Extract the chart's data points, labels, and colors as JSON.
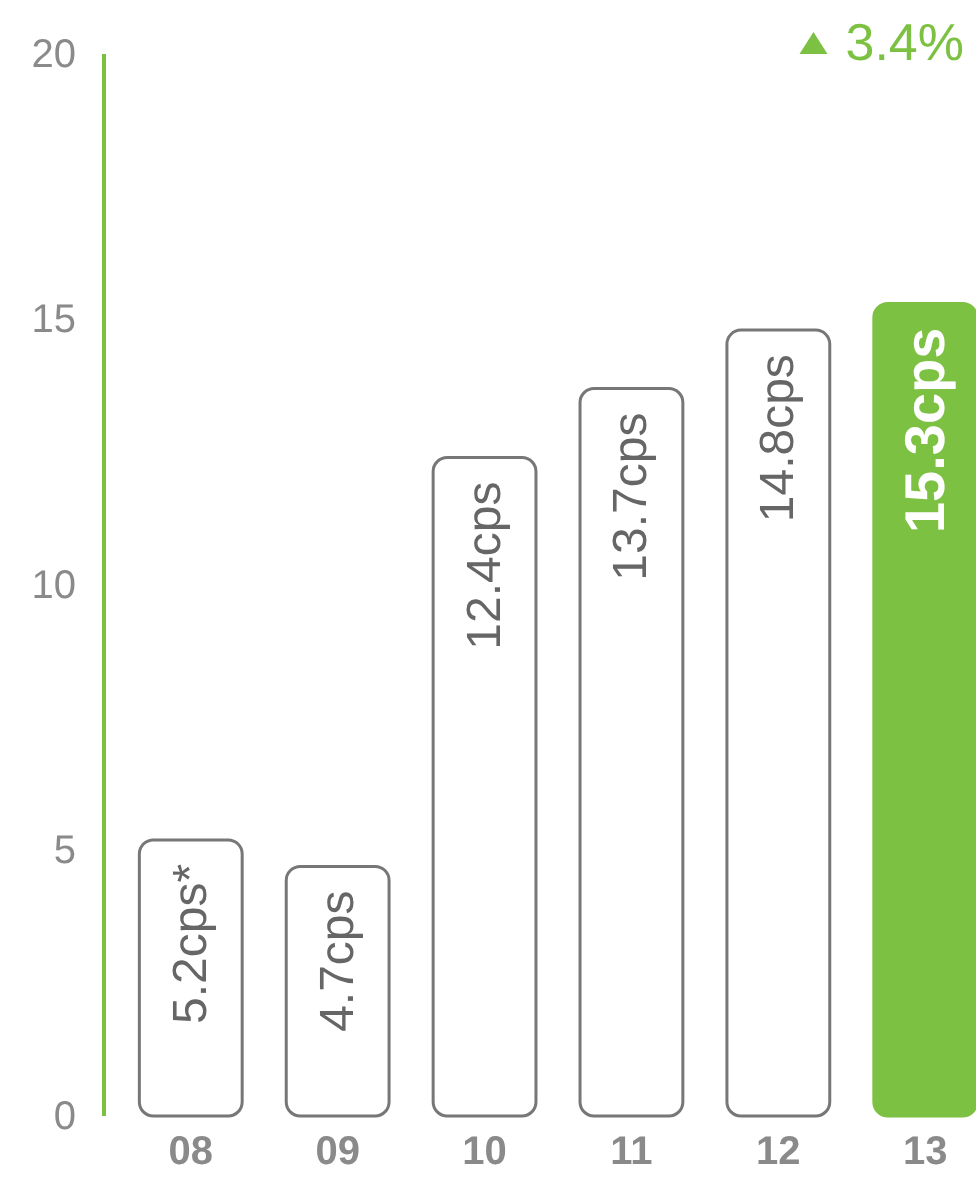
{
  "chart_data": {
    "type": "bar",
    "categories": [
      "08",
      "09",
      "10",
      "11",
      "12",
      "13"
    ],
    "values": [
      5.2,
      4.7,
      12.4,
      13.7,
      14.8,
      15.3
    ],
    "colors": [
      "#ffffff",
      "#ffffff",
      "#ffffff",
      "#ffffff",
      "#ffffff",
      "#7dc142"
    ],
    "value_labels": [
      "5.2cps*",
      "4.7cps",
      "12.4cps",
      "13.7cps",
      "14.8cps",
      "15.3cps"
    ],
    "ylim": [
      0,
      20
    ],
    "yticks": [
      0,
      5,
      10,
      15,
      20
    ],
    "grid": false,
    "annotations": [
      "3.4%"
    ]
  }
}
